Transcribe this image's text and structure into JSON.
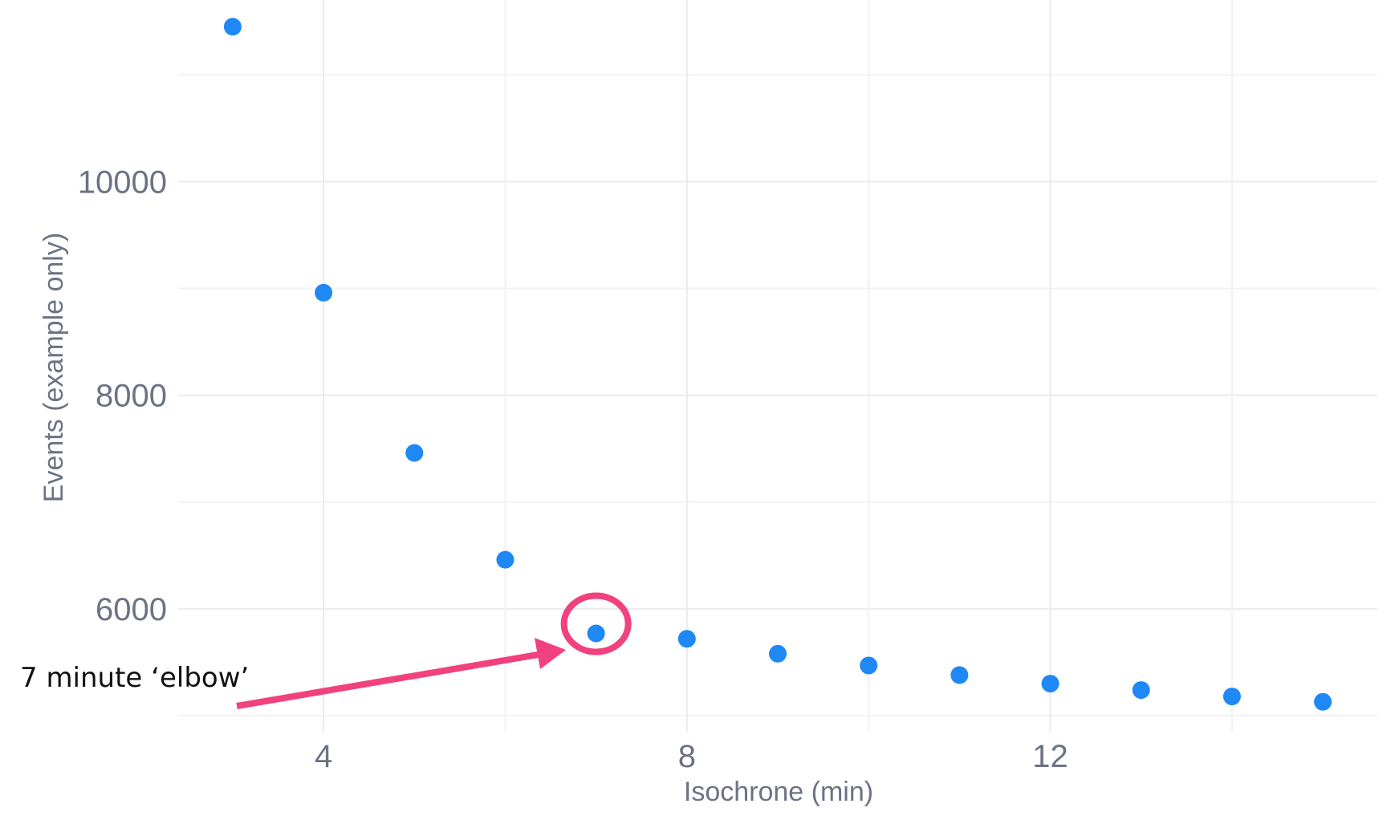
{
  "chart_data": {
    "type": "scatter",
    "title": "",
    "xlabel": "Isochrone (min)",
    "ylabel": "Events (example only)",
    "xlim": [
      2.4,
      15.6
    ],
    "ylim": [
      4850,
      11700
    ],
    "x_ticks": [
      4,
      8,
      12
    ],
    "x_tick_labels": [
      "4",
      "8",
      "12"
    ],
    "x_minor_ticks": [
      6,
      10,
      14
    ],
    "y_ticks": [
      6000,
      8000,
      10000
    ],
    "y_tick_labels": [
      "6000",
      "8000",
      "10000"
    ],
    "y_minor_ticks": [
      5000,
      7000,
      9000,
      11000
    ],
    "grid": true,
    "series": [
      {
        "color": "#1e88f5",
        "x": [
          3,
          4,
          5,
          6,
          7,
          8,
          9,
          10,
          11,
          12,
          13,
          14,
          15
        ],
        "y": [
          11450,
          8960,
          7460,
          6460,
          5770,
          5720,
          5580,
          5470,
          5380,
          5300,
          5240,
          5180,
          5130
        ]
      }
    ],
    "annotations": [
      {
        "text": "7 minute ‘elbow’",
        "target_x": 7,
        "target_y": 5770,
        "color": "#f1417e"
      }
    ]
  }
}
